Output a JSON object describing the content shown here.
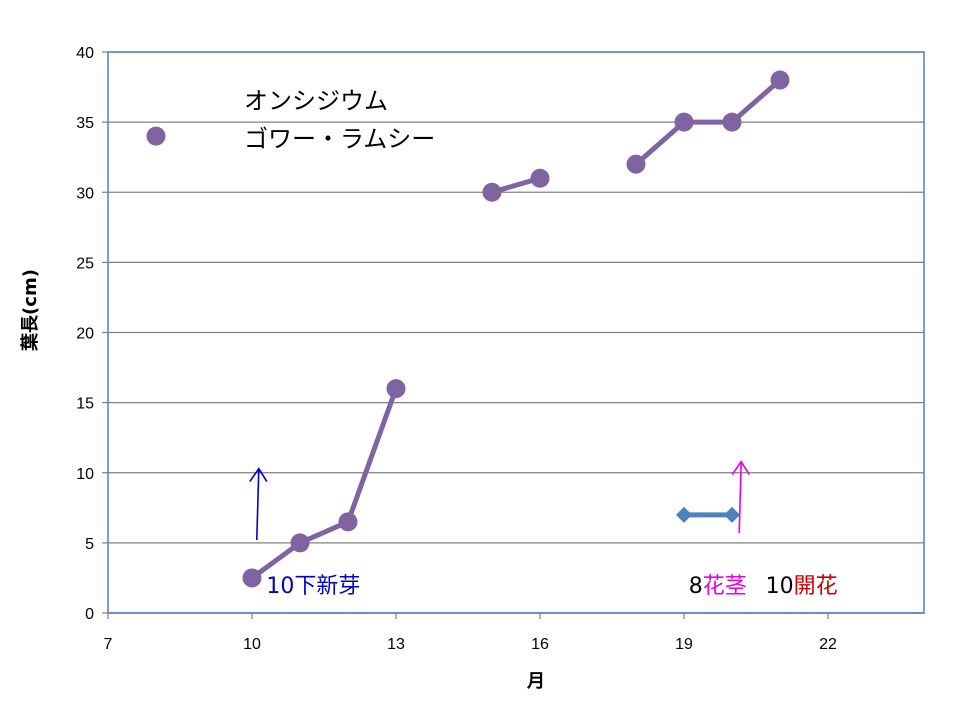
{
  "chart_data": {
    "type": "line",
    "xlabel": "月",
    "ylabel": "葉長(cm)",
    "xlim": [
      7,
      24
    ],
    "ylim": [
      0,
      40
    ],
    "xticks": [
      7,
      10,
      13,
      16,
      19,
      22
    ],
    "yticks": [
      0,
      5,
      10,
      15,
      20,
      25,
      30,
      35,
      40
    ],
    "grid": "horizontal",
    "colors": {
      "series": "#8064A2",
      "marker_series": "#4F81BD",
      "plot_border": "#4F81BD",
      "grid": "#808080"
    },
    "series": [
      {
        "x": [
          8
        ],
        "y": [
          34
        ]
      },
      {
        "x": [
          10,
          11,
          12,
          13
        ],
        "y": [
          2.5,
          5,
          6.5,
          16
        ]
      },
      {
        "x": [
          15,
          16
        ],
        "y": [
          30,
          31
        ]
      },
      {
        "x": [
          18,
          19,
          20,
          21
        ],
        "y": [
          32,
          35,
          35,
          38
        ]
      },
      {
        "x": [
          19,
          20
        ],
        "y": [
          7,
          7
        ],
        "marker": "diamond"
      }
    ],
    "annotations": {
      "title_line1": "オンシジウム",
      "title_line2": "ゴワー・ラムシー",
      "shinme": {
        "text": "10下新芽",
        "color": "#0000CC",
        "x": 10.3,
        "y": 2,
        "arrow": {
          "x": 10.1,
          "y_from": 5.2,
          "y_to": 10.3
        }
      },
      "kakei_num": {
        "text": "8",
        "color": "#000000"
      },
      "kakei_word": {
        "text": "花茎",
        "color": "#E600E6",
        "x": 19.1,
        "y": 2,
        "arrow": {
          "x": 20.15,
          "y_from": 5.7,
          "y_to": 10.8
        }
      },
      "kaika_num": {
        "text": "10",
        "color": "#000000"
      },
      "kaika_word": {
        "text": "開花",
        "color": "#CC0000",
        "x": 20.7,
        "y": 2
      }
    }
  }
}
